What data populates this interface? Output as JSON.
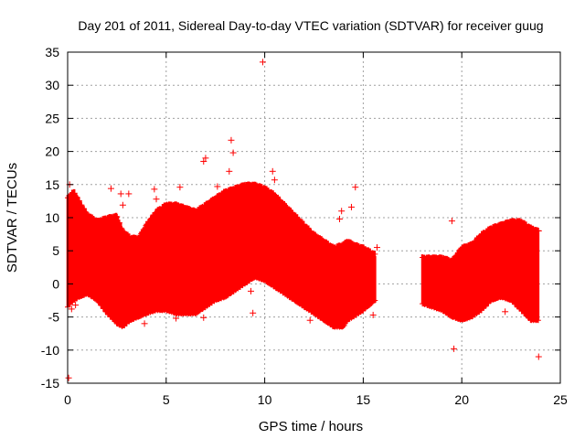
{
  "chart_data": {
    "type": "scatter",
    "title": "Day 201 of 2011, Sidereal Day-to-day VTEC variation (SDTVAR) for receiver guug",
    "xlabel": "GPS time / hours",
    "ylabel": "SDTVAR / TECUs",
    "xlim": [
      0,
      25
    ],
    "ylim": [
      -15,
      35
    ],
    "xticks": [
      0,
      5,
      10,
      15,
      20,
      25
    ],
    "yticks": [
      -15,
      -10,
      -5,
      0,
      5,
      10,
      15,
      20,
      25,
      30,
      35
    ],
    "grid": true,
    "marker": "+",
    "color": "#ff0000",
    "series": [
      {
        "name": "SDTVAR",
        "band": {
          "segments": [
            [
              [
                0.0,
                -3.5,
                13.0
              ],
              [
                0.3,
                -2.5,
                14.0
              ],
              [
                0.6,
                -2.0,
                12.5
              ],
              [
                1.0,
                -1.5,
                10.5
              ],
              [
                1.5,
                -2.5,
                9.5
              ],
              [
                2.0,
                -4.5,
                10.0
              ],
              [
                2.5,
                -6.0,
                10.3
              ],
              [
                2.8,
                -6.5,
                8.0
              ],
              [
                3.2,
                -5.5,
                7.0
              ],
              [
                3.6,
                -5.0,
                7.0
              ],
              [
                4.0,
                -4.5,
                9.0
              ],
              [
                4.5,
                -4.0,
                11.0
              ],
              [
                5.0,
                -4.0,
                12.0
              ],
              [
                5.5,
                -4.5,
                12.0
              ],
              [
                6.0,
                -4.5,
                11.5
              ],
              [
                6.5,
                -4.5,
                11.0
              ],
              [
                7.0,
                -3.5,
                12.0
              ],
              [
                7.5,
                -2.5,
                13.0
              ],
              [
                8.0,
                -2.0,
                14.0
              ],
              [
                8.5,
                -1.0,
                14.5
              ],
              [
                9.0,
                0.0,
                15.0
              ],
              [
                9.5,
                1.0,
                15.0
              ],
              [
                10.0,
                0.5,
                14.5
              ],
              [
                10.5,
                -0.5,
                13.5
              ],
              [
                11.0,
                -1.5,
                12.0
              ],
              [
                11.5,
                -2.5,
                10.5
              ],
              [
                12.0,
                -3.5,
                9.0
              ],
              [
                12.5,
                -4.5,
                7.5
              ],
              [
                13.0,
                -5.5,
                6.5
              ],
              [
                13.5,
                -6.5,
                5.5
              ],
              [
                14.0,
                -6.5,
                6.0
              ],
              [
                14.2,
                -5.5,
                6.5
              ],
              [
                14.5,
                -5.0,
                6.0
              ],
              [
                15.0,
                -4.0,
                5.5
              ],
              [
                15.6,
                -2.5,
                4.5
              ]
            ],
            [
              [
                18.0,
                -3.0,
                4.0
              ],
              [
                18.5,
                -3.5,
                4.0
              ],
              [
                19.0,
                -4.0,
                4.0
              ],
              [
                19.5,
                -5.0,
                3.5
              ],
              [
                20.0,
                -5.5,
                5.5
              ],
              [
                20.5,
                -5.0,
                6.0
              ],
              [
                21.0,
                -4.0,
                7.5
              ],
              [
                21.5,
                -2.5,
                8.5
              ],
              [
                22.0,
                -2.0,
                9.0
              ],
              [
                22.5,
                -2.5,
                9.5
              ],
              [
                23.0,
                -4.0,
                9.5
              ],
              [
                23.5,
                -5.5,
                8.5
              ],
              [
                23.9,
                -5.5,
                8.0
              ]
            ]
          ]
        },
        "outliers": [
          [
            9.9,
            33.5
          ],
          [
            8.3,
            21.7
          ],
          [
            8.4,
            19.8
          ],
          [
            6.9,
            18.5
          ],
          [
            7.0,
            19.0
          ],
          [
            8.2,
            17.0
          ],
          [
            10.4,
            17.0
          ],
          [
            10.5,
            15.7
          ],
          [
            5.7,
            14.6
          ],
          [
            7.6,
            14.7
          ],
          [
            14.6,
            14.6
          ],
          [
            13.9,
            11.0
          ],
          [
            14.4,
            11.6
          ],
          [
            13.8,
            9.8
          ],
          [
            2.2,
            14.4
          ],
          [
            2.7,
            13.6
          ],
          [
            3.1,
            13.6
          ],
          [
            2.8,
            11.9
          ],
          [
            4.5,
            12.8
          ],
          [
            4.4,
            14.3
          ],
          [
            0.1,
            15.0
          ],
          [
            0.05,
            -14.2
          ],
          [
            9.3,
            -1.1
          ],
          [
            9.4,
            -4.4
          ],
          [
            14.3,
            -3.8
          ],
          [
            15.5,
            -4.7
          ],
          [
            15.4,
            -1.0
          ],
          [
            19.6,
            -9.8
          ],
          [
            19.5,
            9.5
          ],
          [
            22.2,
            -4.2
          ],
          [
            23.9,
            -11.0
          ],
          [
            23.9,
            8.0
          ],
          [
            3.9,
            -6.0
          ],
          [
            5.5,
            -5.2
          ],
          [
            6.9,
            -5.1
          ],
          [
            12.3,
            -5.5
          ],
          [
            15.7,
            5.5
          ],
          [
            0.2,
            -3.8
          ],
          [
            0.4,
            -3.2
          ]
        ]
      }
    ]
  }
}
